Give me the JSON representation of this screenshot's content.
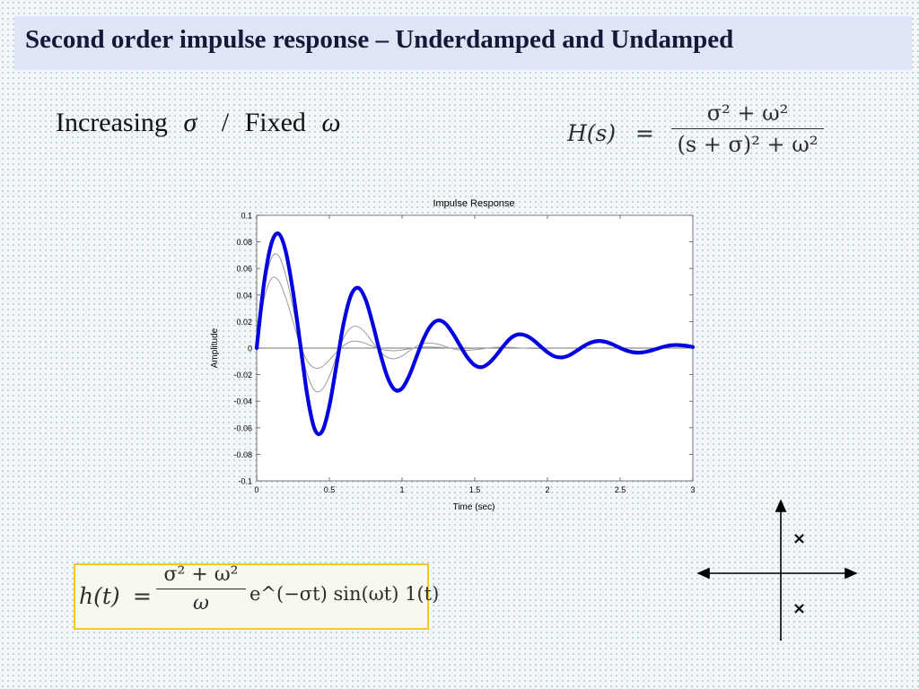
{
  "slide": {
    "title": "Second order impulse response – Underdamped and Undamped",
    "subtitle": {
      "word1": "Increasing",
      "sym1": "σ",
      "sep": "/",
      "word2": "Fixed",
      "sym2": "ω"
    },
    "transfer_function": {
      "lhs": "H(s)",
      "eq": "=",
      "numerator": "σ² + ω²",
      "denominator": "(s + σ)² + ω²"
    },
    "time_response": {
      "lhs": "h(t)",
      "eq": "=",
      "numerator": "σ² + ω²",
      "denominator": "ω",
      "rest": "e^(−σt) sin(ωt) 1(t)"
    },
    "pole_markers": [
      "×",
      "×"
    ]
  },
  "chart_data": {
    "type": "line",
    "title": "Impulse Response",
    "xlabel": "Time (sec)",
    "ylabel": "Amplitude",
    "xlim": [
      0,
      3
    ],
    "ylim": [
      -0.1,
      0.1
    ],
    "x_ticks": [
      0,
      0.5,
      1,
      1.5,
      2,
      2.5,
      3
    ],
    "x_tick_labels": [
      "0",
      "0.5",
      "1",
      "1.5",
      "2",
      "2.5",
      "3"
    ],
    "y_ticks": [
      0.1,
      0.08,
      0.06,
      0.04,
      0.02,
      0,
      -0.02,
      -0.04,
      -0.06,
      -0.08,
      -0.1
    ],
    "y_tick_labels": [
      "0.1",
      "0.08",
      "0.06",
      "0.04",
      "0.02",
      "0",
      "-0.02",
      "-0.04",
      "-0.06",
      "-0.08",
      "-0.1"
    ],
    "grid": false,
    "series": [
      {
        "color": "#0000e0",
        "highlight": true,
        "x": [
          0,
          0.05,
          0.1,
          0.15,
          0.2,
          0.25,
          0.3,
          0.35,
          0.4,
          0.45,
          0.5,
          0.55,
          0.6,
          0.65,
          0.7,
          0.75,
          0.8,
          0.85,
          0.9,
          0.95,
          1.0,
          1.05,
          1.1,
          1.15,
          1.2,
          1.25,
          1.3,
          1.35,
          1.4,
          1.45,
          1.5,
          1.55,
          1.6,
          1.65,
          1.7,
          1.75,
          1.8,
          1.85,
          1.9,
          1.95,
          2.0,
          2.05,
          2.1,
          2.15,
          2.2,
          2.25,
          2.3,
          2.35,
          2.4,
          2.45,
          2.5,
          2.55,
          2.6,
          2.65,
          2.7,
          2.75,
          2.8,
          2.85,
          2.9,
          2.95,
          3.0
        ],
        "y": [
          0.0,
          0.0483,
          0.0782,
          0.0862,
          0.0728,
          0.0425,
          0.0028,
          -0.0368,
          -0.0614,
          -0.0628,
          -0.0436,
          -0.0121,
          0.0196,
          0.0401,
          0.0453,
          0.0363,
          0.0176,
          -0.0041,
          -0.0219,
          -0.0314,
          -0.0303,
          -0.0206,
          -0.0064,
          0.0075,
          0.0172,
          0.0209,
          0.0183,
          0.0109,
          0.0017,
          -0.0071,
          -0.0129,
          -0.0143,
          -0.0111,
          -0.0051,
          0.0019,
          0.0077,
          0.0103,
          0.0095,
          0.0063,
          0.0015,
          -0.0031,
          -0.0063,
          -0.007,
          -0.0054,
          -0.0021,
          0.0015,
          0.0042,
          0.0053,
          0.0047,
          0.0027,
          0.0001,
          -0.0021,
          -0.0033,
          -0.0033,
          -0.0022,
          -0.0006,
          0.001,
          0.0021,
          0.0023,
          0.0018,
          0.0008
        ]
      },
      {
        "color": "#9a9a9a",
        "highlight": false,
        "x": [
          0,
          0.05,
          0.1,
          0.15,
          0.2,
          0.25,
          0.3,
          0.35,
          0.4,
          0.45,
          0.5,
          0.55,
          0.6,
          0.65,
          0.7,
          0.75,
          0.8,
          0.85,
          0.9,
          0.95,
          1.0,
          1.05,
          1.1,
          1.15,
          1.2,
          1.25,
          1.3,
          1.35,
          1.4,
          1.45,
          1.5,
          1.55,
          1.6,
          1.65,
          1.7,
          1.75,
          1.8,
          1.85,
          1.9,
          1.95,
          2.0
        ],
        "y": [
          0.0,
          0.0438,
          0.0673,
          0.0696,
          0.0549,
          0.0304,
          0.0019,
          -0.0205,
          -0.032,
          -0.0312,
          -0.0212,
          -0.006,
          0.008,
          0.0154,
          0.016,
          0.0113,
          0.004,
          -0.0027,
          -0.0071,
          -0.008,
          -0.0059,
          -0.0021,
          0.0014,
          0.0035,
          0.0038,
          0.0028,
          0.0011,
          -0.0005,
          -0.0015,
          -0.0017,
          -0.0013,
          -0.0005,
          0.0002,
          0.0006,
          0.0007,
          0.0005,
          0.0002,
          -0.0001,
          -0.0003,
          -0.0003,
          -0.0002
        ]
      },
      {
        "color": "#9a9a9a",
        "highlight": false,
        "x": [
          0,
          0.05,
          0.1,
          0.15,
          0.2,
          0.25,
          0.3,
          0.35,
          0.4,
          0.45,
          0.5,
          0.55,
          0.6,
          0.65,
          0.7,
          0.75,
          0.8,
          0.85,
          0.9,
          0.95,
          1.0,
          1.05,
          1.1,
          1.15,
          1.2,
          1.25,
          1.3,
          1.35,
          1.4,
          1.45,
          1.5
        ],
        "y": [
          0.0,
          0.036,
          0.052,
          0.051,
          0.038,
          0.02,
          0.002,
          -0.01,
          -0.015,
          -0.014,
          -0.009,
          -0.003,
          0.002,
          0.005,
          0.005,
          0.0035,
          0.0012,
          -0.0008,
          -0.0018,
          -0.002,
          -0.0014,
          -0.0005,
          0.0003,
          0.0008,
          0.0008,
          0.0006,
          0.0002,
          -0.0001,
          -0.0003,
          -0.0003,
          -0.0002
        ]
      }
    ]
  }
}
